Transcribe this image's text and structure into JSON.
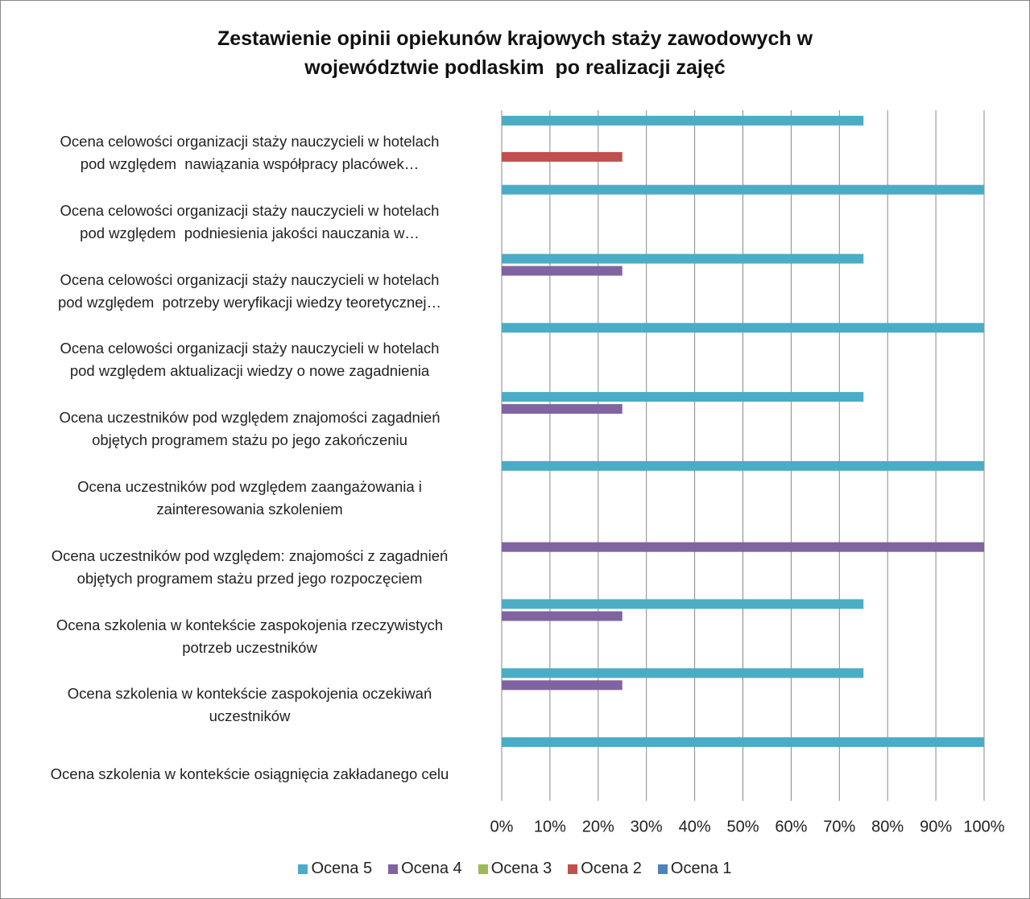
{
  "chart_data": {
    "type": "bar",
    "orientation": "horizontal",
    "title": "Zestawienie opinii opiekunów krajowych staży zawodowych w\nwojewództwie podlaskim  po realizacji zajęć",
    "categories": [
      "Ocena celowości organizacji staży nauczycieli w hotelach\npod względem  nawiązania współpracy placówek…",
      "Ocena celowości organizacji staży nauczycieli w hotelach\npod względem  podniesienia jakości nauczania w…",
      "Ocena celowości organizacji staży nauczycieli w hotelach\npod względem  potrzeby weryfikacji wiedzy teoretycznej…",
      "Ocena celowości organizacji staży nauczycieli w hotelach\npod względem aktualizacji wiedzy o nowe zagadnienia",
      "Ocena uczestników pod względem znajomości zagadnień\nobjętych programem stażu po jego zakończeniu",
      "Ocena uczestników pod względem zaangażowania i\nzainteresowania szkoleniem",
      "Ocena uczestników pod względem: znajomości z zagadnień\nobjętych programem stażu przed jego rozpoczęciem",
      "Ocena szkolenia w kontekście zaspokojenia rzeczywistych\npotrzeb uczestników",
      "Ocena szkolenia w kontekście zaspokojenia oczekiwań\nuczestników",
      "Ocena szkolenia w kontekście osiągnięcia zakładanego celu"
    ],
    "series": [
      {
        "name": "Ocena 5",
        "color": "#4bacc6",
        "values": [
          75,
          100,
          75,
          100,
          75,
          100,
          0,
          75,
          75,
          100
        ]
      },
      {
        "name": "Ocena 4",
        "color": "#8064a2",
        "values": [
          0,
          0,
          25,
          0,
          25,
          0,
          100,
          25,
          25,
          0
        ]
      },
      {
        "name": "Ocena 3",
        "color": "#9bbb59",
        "values": [
          0,
          0,
          0,
          0,
          0,
          0,
          0,
          0,
          0,
          0
        ]
      },
      {
        "name": "Ocena 2",
        "color": "#c0504d",
        "values": [
          25,
          0,
          0,
          0,
          0,
          0,
          0,
          0,
          0,
          0
        ]
      },
      {
        "name": "Ocena 1",
        "color": "#4f81bd",
        "values": [
          0,
          0,
          0,
          0,
          0,
          0,
          0,
          0,
          0,
          0
        ]
      }
    ],
    "xlim": [
      0,
      100
    ],
    "xticks": [
      {
        "value": 0,
        "label": "0%"
      },
      {
        "value": 10,
        "label": "10%"
      },
      {
        "value": 20,
        "label": "20%"
      },
      {
        "value": 30,
        "label": "30%"
      },
      {
        "value": 40,
        "label": "40%"
      },
      {
        "value": 50,
        "label": "50%"
      },
      {
        "value": 60,
        "label": "60%"
      },
      {
        "value": 70,
        "label": "70%"
      },
      {
        "value": 80,
        "label": "80%"
      },
      {
        "value": 90,
        "label": "90%"
      },
      {
        "value": 100,
        "label": "100%"
      }
    ],
    "grid": true,
    "legend": "bottom"
  }
}
